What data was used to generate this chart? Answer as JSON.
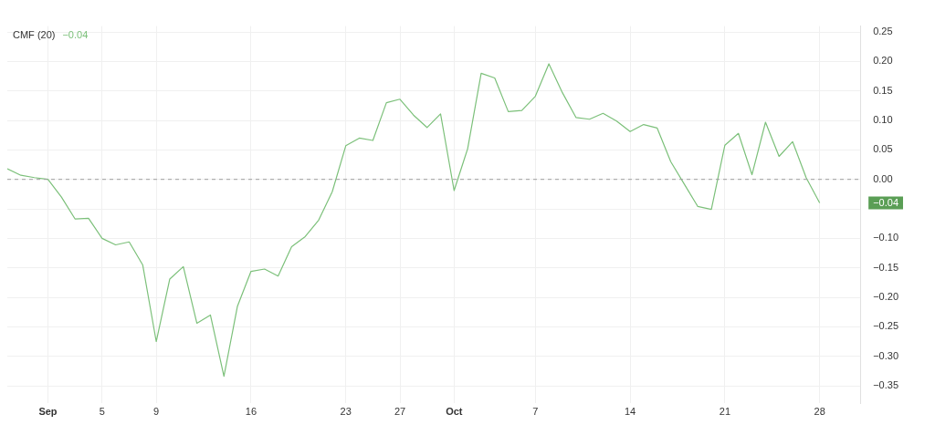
{
  "chart_data": {
    "type": "line",
    "title": "CMF (20)",
    "subtitle": "−0.04",
    "x": [
      "--08-29",
      "--08-30",
      "--08-31",
      "--09-01",
      "--09-02",
      "--09-03",
      "--09-04",
      "--09-05",
      "--09-06",
      "--09-07",
      "--09-08",
      "--09-09",
      "--09-10",
      "--09-11",
      "--09-12",
      "--09-13",
      "--09-14",
      "--09-15",
      "--09-16",
      "--09-17",
      "--09-18",
      "--09-19",
      "--09-20",
      "--09-21",
      "--09-22",
      "--09-23",
      "--09-24",
      "--09-25",
      "--09-26",
      "--09-27",
      "--09-28",
      "--09-29",
      "--09-30",
      "--10-01",
      "--10-02",
      "--10-03",
      "--10-04",
      "--10-05",
      "--10-06",
      "--10-07",
      "--10-08",
      "--10-09",
      "--10-10",
      "--10-11",
      "--10-12",
      "--10-13",
      "--10-14",
      "--10-15",
      "--10-16",
      "--10-17",
      "--10-18",
      "--10-19",
      "--10-20",
      "--10-21",
      "--10-22",
      "--10-23",
      "--10-24",
      "--10-25",
      "--10-26",
      "--10-27",
      "--10-28"
    ],
    "series": [
      {
        "color": "#7cc07a",
        "values": [
          0.018,
          0.007,
          0.003,
          0.0,
          -0.03,
          -0.067,
          -0.066,
          -0.1,
          -0.111,
          -0.106,
          -0.145,
          -0.275,
          -0.169,
          -0.148,
          -0.244,
          -0.23,
          -0.334,
          -0.215,
          -0.156,
          -0.152,
          -0.164,
          -0.114,
          -0.097,
          -0.069,
          -0.021,
          0.057,
          0.07,
          0.066,
          0.13,
          0.136,
          0.109,
          0.088,
          0.111,
          -0.019,
          0.052,
          0.18,
          0.172,
          0.115,
          0.117,
          0.141,
          0.196,
          0.147,
          0.105,
          0.102,
          0.112,
          0.099,
          0.081,
          0.093,
          0.087,
          0.03,
          -0.008,
          -0.046,
          -0.051,
          0.058,
          0.078,
          0.008,
          0.097,
          0.039,
          0.064,
          0.003,
          -0.04
        ]
      }
    ],
    "xlim": [
      "--08-29",
      "--10-31"
    ],
    "xticks": [
      {
        "value": "--09-01",
        "label": "Sep"
      },
      {
        "value": "--09-05",
        "label": "5"
      },
      {
        "value": "--09-09",
        "label": "9"
      },
      {
        "value": "--09-16",
        "label": "16"
      },
      {
        "value": "--09-23",
        "label": "23"
      },
      {
        "value": "--09-27",
        "label": "27"
      },
      {
        "value": "--10-01",
        "label": "Oct"
      },
      {
        "value": "--10-07",
        "label": "7"
      },
      {
        "value": "--10-14",
        "label": "14"
      },
      {
        "value": "--10-21",
        "label": "21"
      },
      {
        "value": "--10-28",
        "label": "28"
      }
    ],
    "ylim": [
      -0.38,
      0.26
    ],
    "yticks": [
      {
        "value": -0.35,
        "label": "−0.35"
      },
      {
        "value": -0.3,
        "label": "−0.30"
      },
      {
        "value": -0.25,
        "label": "−0.25"
      },
      {
        "value": -0.2,
        "label": "−0.20"
      },
      {
        "value": -0.15,
        "label": "−0.15"
      },
      {
        "value": -0.1,
        "label": "−0.10"
      },
      {
        "value": -0.05,
        "label": null
      },
      {
        "value": 0,
        "label": "0.00"
      },
      {
        "value": 0.05,
        "label": "0.05"
      },
      {
        "value": 0.1,
        "label": "0.10"
      },
      {
        "value": 0.15,
        "label": "0.15"
      },
      {
        "value": 0.2,
        "label": "0.20"
      },
      {
        "value": 0.25,
        "label": "0.25"
      }
    ],
    "ref_lines": [
      {
        "axis": "y",
        "value": 0,
        "color": "#9e9e9e",
        "line_style": "dashed"
      }
    ],
    "annotations": [
      "−0.04"
    ],
    "grid": true,
    "legend": false,
    "marker": "none",
    "line_style": "solid"
  }
}
